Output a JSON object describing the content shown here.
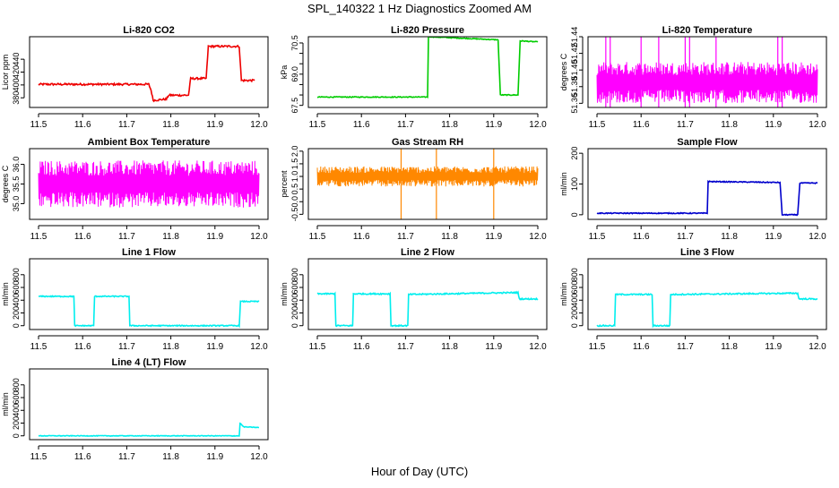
{
  "figure": {
    "title": "SPL_140322  1 Hz Diagnostics Zoomed AM",
    "xlabel": "Hour of Day (UTC)"
  },
  "chart_data": [
    {
      "type": "line",
      "title": "Li-820 CO2",
      "ylabel": "Licor ppm",
      "color": "#ee0000",
      "xlim": [
        11.5,
        12.0
      ],
      "ylim": [
        365,
        475
      ],
      "yticks": [
        380,
        400,
        420,
        440
      ],
      "xticks": [
        11.5,
        11.6,
        11.7,
        11.8,
        11.9,
        12.0
      ],
      "noise": 1.5,
      "series": [
        {
          "x": [
            11.5,
            11.75,
            11.755,
            11.76,
            11.79,
            11.795,
            11.84,
            11.845,
            11.88,
            11.885,
            11.955,
            11.96,
            11.99
          ],
          "y": [
            401,
            401,
            392,
            376,
            378,
            384,
            384,
            410,
            410,
            460,
            460,
            407,
            407
          ]
        }
      ]
    },
    {
      "type": "line",
      "title": "Li-820 Pressure",
      "ylabel": "kPa",
      "color": "#00cc00",
      "xlim": [
        11.5,
        12.0
      ],
      "ylim": [
        67.4,
        70.8
      ],
      "yticks": [
        67.5,
        69.0,
        70.5
      ],
      "extraTicks": [
        68.0,
        68.5,
        69.5,
        70.0
      ],
      "xticks": [
        11.5,
        11.6,
        11.7,
        11.8,
        11.9,
        12.0
      ],
      "noise": 0.02,
      "series": [
        {
          "x": [
            11.5,
            11.75,
            11.752,
            11.91,
            11.915,
            11.955,
            11.96,
            12.0
          ],
          "y": [
            67.9,
            67.9,
            70.8,
            70.65,
            68.0,
            68.0,
            70.6,
            70.55
          ]
        }
      ]
    },
    {
      "type": "band",
      "title": "Li-820 Temperature",
      "ylabel": "degrees C",
      "color": "#ff00ff",
      "xlim": [
        11.5,
        12.0
      ],
      "ylim": [
        51.355,
        51.44
      ],
      "yticks": [
        51.36,
        51.38,
        51.4,
        51.42,
        51.44
      ],
      "xticks": [
        11.5,
        11.6,
        11.7,
        11.8,
        11.9,
        12.0
      ],
      "band": [
        51.36,
        51.41
      ],
      "center": 51.385,
      "spikes": [
        11.52,
        11.53,
        11.6,
        11.64,
        11.7,
        11.71,
        11.77,
        11.91,
        11.92
      ]
    },
    {
      "type": "band",
      "title": "Ambient Box Temperature",
      "ylabel": "degrees C",
      "color": "#ff00ff",
      "xlim": [
        11.5,
        12.0
      ],
      "ylim": [
        34.6,
        36.4
      ],
      "yticks": [
        35.0,
        35.5,
        36.0
      ],
      "xticks": [
        11.5,
        11.6,
        11.7,
        11.8,
        11.9,
        12.0
      ],
      "band": [
        34.9,
        36.1
      ],
      "center": 35.5,
      "spikes": []
    },
    {
      "type": "band",
      "title": "Gas Stream RH",
      "ylabel": "percent",
      "color": "#ff8800",
      "xlim": [
        11.5,
        12.0
      ],
      "ylim": [
        -0.7,
        2.1
      ],
      "yticks": [
        -0.5,
        0.0,
        0.5,
        1.0,
        1.5,
        2.0
      ],
      "xticks": [
        11.5,
        11.6,
        11.7,
        11.8,
        11.9,
        12.0
      ],
      "band": [
        0.6,
        1.4
      ],
      "center": 1.0,
      "spikes": [
        11.69,
        11.77,
        11.9
      ]
    },
    {
      "type": "line",
      "title": "Sample Flow",
      "ylabel": "ml/min",
      "color": "#0000cc",
      "xlim": [
        11.5,
        12.0
      ],
      "ylim": [
        -15,
        215
      ],
      "yticks": [
        0,
        100,
        200
      ],
      "xticks": [
        11.5,
        11.6,
        11.7,
        11.8,
        11.9,
        12.0
      ],
      "noise": 1.5,
      "series": [
        {
          "x": [
            11.5,
            11.75,
            11.752,
            11.915,
            11.92,
            11.955,
            11.96,
            12.0
          ],
          "y": [
            5,
            5,
            108,
            105,
            0,
            0,
            103,
            103
          ]
        }
      ]
    },
    {
      "type": "line",
      "title": "Line 1 Flow",
      "ylabel": "ml/min",
      "color": "#00eeee",
      "xlim": [
        11.5,
        12.0
      ],
      "ylim": [
        -60,
        1050
      ],
      "yticks": [
        0,
        200,
        400,
        600,
        800
      ],
      "xticks": [
        11.5,
        11.6,
        11.7,
        11.8,
        11.9,
        12.0
      ],
      "noise": 8,
      "series": [
        {
          "x": [
            11.5,
            11.58,
            11.582,
            11.625,
            11.627,
            11.705,
            11.707,
            11.955,
            11.958,
            12.0
          ],
          "y": [
            460,
            460,
            0,
            0,
            460,
            460,
            0,
            0,
            380,
            380
          ]
        }
      ]
    },
    {
      "type": "line",
      "title": "Line 2 Flow",
      "ylabel": "ml/min",
      "color": "#00eeee",
      "xlim": [
        11.5,
        12.0
      ],
      "ylim": [
        -60,
        1050
      ],
      "yticks": [
        0,
        200,
        400,
        600,
        800
      ],
      "xticks": [
        11.5,
        11.6,
        11.7,
        11.8,
        11.9,
        12.0
      ],
      "noise": 10,
      "series": [
        {
          "x": [
            11.5,
            11.54,
            11.542,
            11.58,
            11.582,
            11.665,
            11.667,
            11.705,
            11.707,
            11.955,
            11.958,
            12.0
          ],
          "y": [
            500,
            500,
            0,
            0,
            500,
            500,
            0,
            0,
            490,
            520,
            420,
            420
          ]
        }
      ]
    },
    {
      "type": "line",
      "title": "Line 3 Flow",
      "ylabel": "ml/min",
      "color": "#00eeee",
      "xlim": [
        11.5,
        12.0
      ],
      "ylim": [
        -60,
        1050
      ],
      "yticks": [
        0,
        200,
        400,
        600,
        800
      ],
      "xticks": [
        11.5,
        11.6,
        11.7,
        11.8,
        11.9,
        12.0
      ],
      "noise": 10,
      "series": [
        {
          "x": [
            11.5,
            11.54,
            11.542,
            11.625,
            11.627,
            11.665,
            11.667,
            11.955,
            11.958,
            12.0
          ],
          "y": [
            0,
            0,
            490,
            490,
            0,
            0,
            490,
            510,
            420,
            420
          ]
        }
      ]
    },
    {
      "type": "line",
      "title": "Line 4 (LT) Flow",
      "ylabel": "ml/min",
      "color": "#00eeee",
      "xlim": [
        11.5,
        12.0
      ],
      "ylim": [
        -60,
        1050
      ],
      "yticks": [
        0,
        200,
        400,
        600,
        800
      ],
      "xticks": [
        11.5,
        11.6,
        11.7,
        11.8,
        11.9,
        12.0
      ],
      "noise": 5,
      "series": [
        {
          "x": [
            11.5,
            11.955,
            11.957,
            11.965,
            12.0
          ],
          "y": [
            0,
            0,
            200,
            140,
            130
          ]
        }
      ]
    }
  ]
}
